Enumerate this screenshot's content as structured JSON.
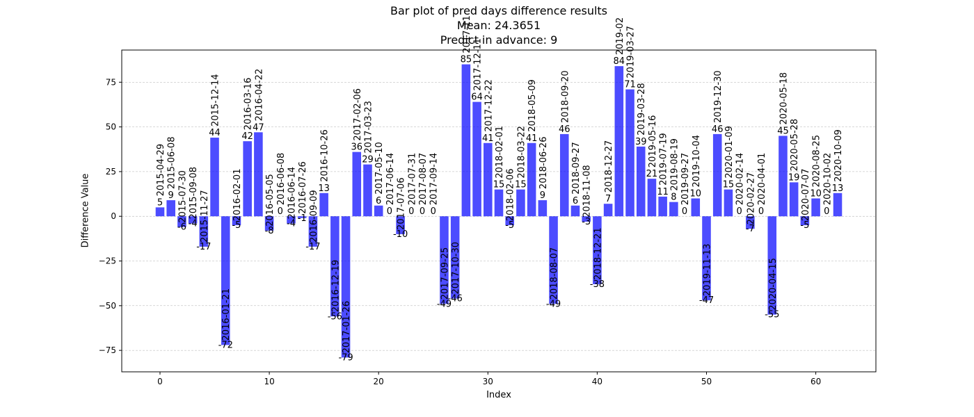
{
  "chart_data": {
    "type": "bar",
    "title_lines": [
      "Bar plot of pred days difference results",
      "Mean: 24.3651",
      "Predict in advance: 9"
    ],
    "xlabel": "Index",
    "ylabel": "Difference Value",
    "xlim": [
      -3.5,
      65.5
    ],
    "ylim": [
      -87,
      93
    ],
    "xticks": [
      0,
      10,
      20,
      30,
      40,
      50,
      60
    ],
    "yticks": [
      -75,
      -50,
      -25,
      0,
      25,
      50,
      75
    ],
    "grid": "y-dashed",
    "bar_color": "#0000ff",
    "bar_opacity": 0.7,
    "values": [
      5,
      9,
      -6,
      -4,
      -17,
      44,
      -72,
      -5,
      42,
      47,
      -8,
      0,
      -4,
      -1,
      -17,
      13,
      -56,
      -79,
      36,
      29,
      6,
      0,
      -10,
      0,
      0,
      0,
      -49,
      -46,
      85,
      64,
      41,
      15,
      -5,
      15,
      41,
      9,
      -49,
      46,
      6,
      -3,
      -38,
      7,
      84,
      71,
      39,
      21,
      11,
      8,
      0,
      10,
      -47,
      46,
      15,
      0,
      -7,
      0,
      -55,
      45,
      19,
      -5,
      10,
      0,
      13
    ],
    "dates": [
      "2015-04-29",
      "2015-06-08",
      "2015-07-30",
      "2015-09-08",
      "2015-11-27",
      "2015-12-14",
      "2016-01-21",
      "2016-02-01",
      "2016-03-16",
      "2016-04-22",
      "2016-05-05",
      "2016-06-08",
      "2016-06-14",
      "2016-07-26",
      "2016-09-09",
      "2016-10-26",
      "2016-12-19",
      "2017-01-26",
      "2017-02-06",
      "2017-03-23",
      "2017-05-10",
      "2017-06-14",
      "2017-07-06",
      "2017-07-31",
      "2017-08-07",
      "2017-09-14",
      "2017-09-25",
      "2017-10-30",
      "2017-11",
      "2017-12-11",
      "2017-12-22",
      "2018-02-01",
      "2018-02-06",
      "2018-03-22",
      "2018-05-09",
      "2018-06-26",
      "2018-08-07",
      "2018-09-20",
      "2018-09-27",
      "2018-11-08",
      "2018-12-21",
      "2018-12-27",
      "2019-02",
      "2019-03-27",
      "2019-03-28",
      "2019-05-16",
      "2019-07-19",
      "2019-08-19",
      "2019-09-27",
      "2019-10-04",
      "2019-11-13",
      "2019-12-30",
      "2020-01-09",
      "2020-02-14",
      "2020-02-27",
      "2020-04-01",
      "2020-04-15",
      "2020-05-18",
      "2020-05-28",
      "2020-07-07",
      "2020-08-25",
      "2020-10-02",
      "2020-10-09"
    ]
  }
}
